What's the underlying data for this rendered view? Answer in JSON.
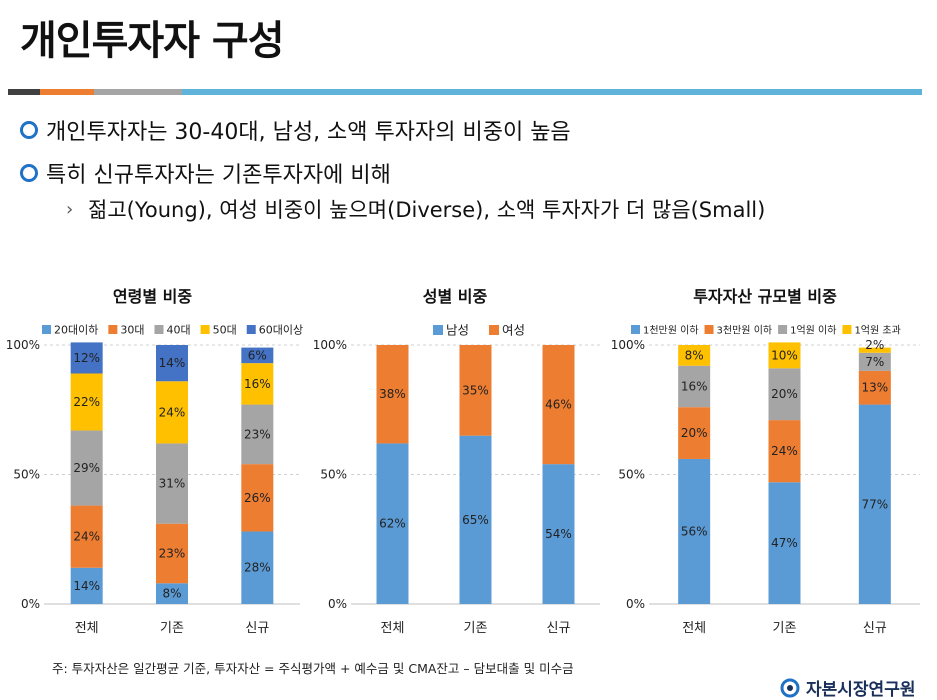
{
  "page": {
    "title": "개인투자자 구성",
    "bullet1": "개인투자자는 30-40대, 남성, 소액 투자자의 비중이 높음",
    "bullet2": "특히 신규투자자는 기존투자자에 비해",
    "sub_bullet": "젊고(Young), 여성 비중이 높으며(Diverse), 소액 투자자가 더 많음(Small)",
    "footnote": "주: 투자자산은 일간평균 기준, 투자자산 = 주식평가액 + 예수금 및 CMA잔고 – 담보대출 및 미수금",
    "logo_text": "자본시장연구원",
    "rule_colors": [
      "#404040",
      "#ed7d31",
      "#a5a5a5",
      "#5fb3d9"
    ],
    "bullet_color": "#1f72c6"
  },
  "chart_data": [
    {
      "type": "bar",
      "stacked": true,
      "title": "연령별 비중",
      "categories": [
        "전체",
        "기존",
        "신규"
      ],
      "yticks": [
        "0%",
        "50%",
        "100%"
      ],
      "ylim": [
        0,
        100
      ],
      "legend": "top",
      "series": [
        {
          "name": "20대이하",
          "color": "#5b9bd5",
          "values": [
            14,
            8,
            28
          ]
        },
        {
          "name": "30대",
          "color": "#ed7d31",
          "values": [
            24,
            23,
            26
          ]
        },
        {
          "name": "40대",
          "color": "#a5a5a5",
          "values": [
            29,
            31,
            23
          ]
        },
        {
          "name": "50대",
          "color": "#ffc000",
          "values": [
            22,
            24,
            16
          ]
        },
        {
          "name": "60대이상",
          "color": "#4472c4",
          "values": [
            12,
            14,
            6
          ]
        }
      ]
    },
    {
      "type": "bar",
      "stacked": true,
      "title": "성별 비중",
      "categories": [
        "전체",
        "기존",
        "신규"
      ],
      "yticks": [
        "0%",
        "50%",
        "100%"
      ],
      "ylim": [
        0,
        100
      ],
      "legend": "top",
      "series": [
        {
          "name": "남성",
          "color": "#5b9bd5",
          "values": [
            62,
            65,
            54
          ]
        },
        {
          "name": "여성",
          "color": "#ed7d31",
          "values": [
            38,
            35,
            46
          ]
        }
      ]
    },
    {
      "type": "bar",
      "stacked": true,
      "title": "투자자산 규모별 비중",
      "categories": [
        "전체",
        "기존",
        "신규"
      ],
      "yticks": [
        "0%",
        "50%",
        "100%"
      ],
      "ylim": [
        0,
        100
      ],
      "legend": "top",
      "series": [
        {
          "name": "1천만원 이하",
          "color": "#5b9bd5",
          "values": [
            56,
            47,
            77
          ]
        },
        {
          "name": "3천만원 이하",
          "color": "#ed7d31",
          "values": [
            20,
            24,
            13
          ]
        },
        {
          "name": "1억원 이하",
          "color": "#a5a5a5",
          "values": [
            16,
            20,
            7
          ]
        },
        {
          "name": "1억원 초과",
          "color": "#ffc000",
          "values": [
            8,
            10,
            2
          ]
        }
      ]
    }
  ]
}
